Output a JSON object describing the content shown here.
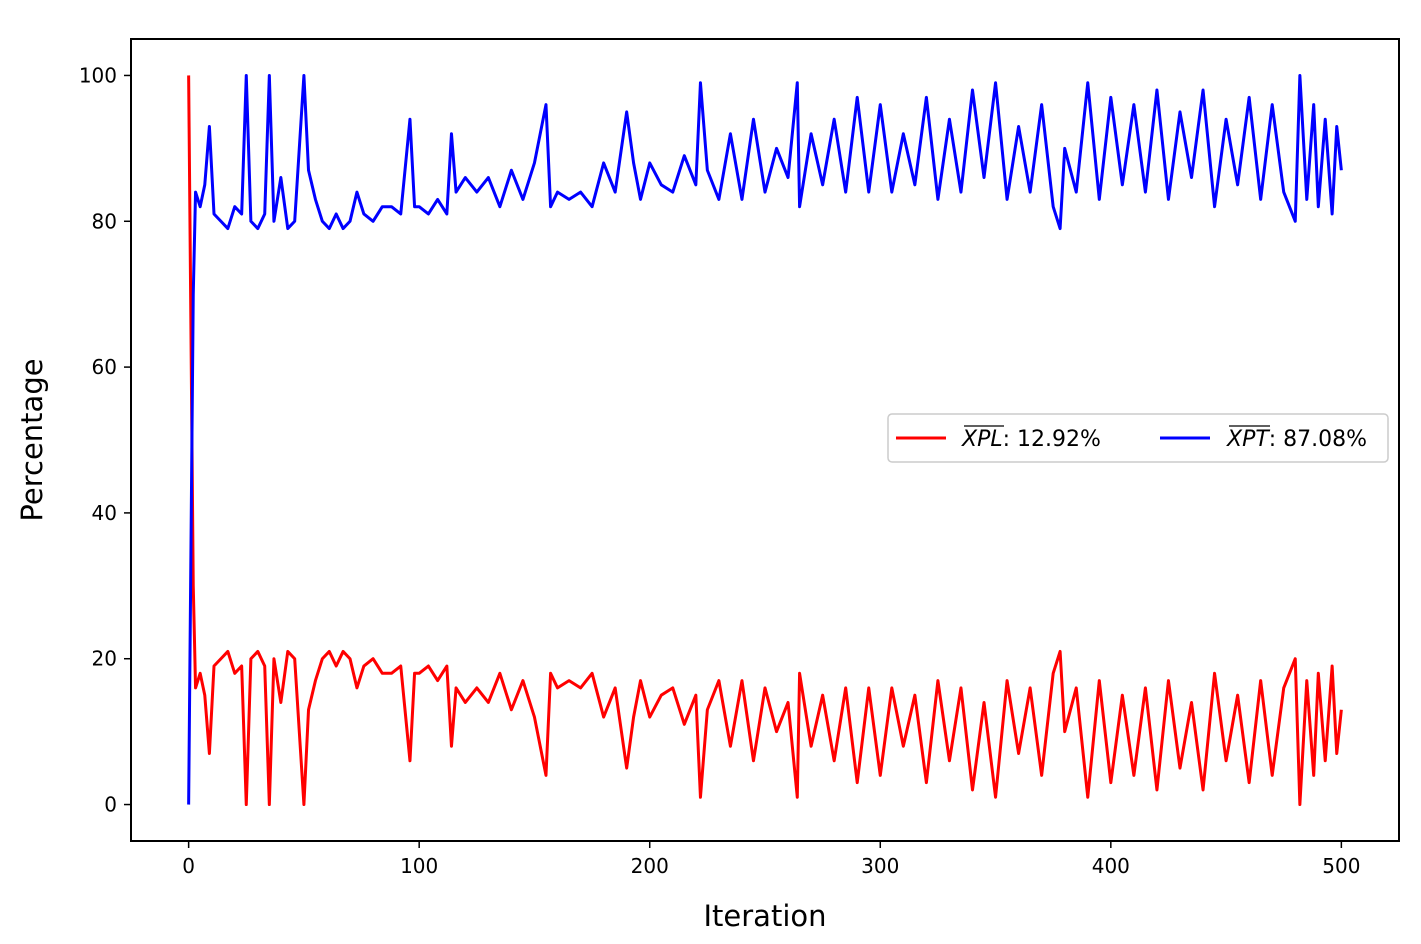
{
  "chart_data": {
    "type": "line",
    "title": "",
    "xlabel": "Iteration",
    "ylabel": "Percentage",
    "xlim": [
      -25,
      525
    ],
    "ylim": [
      -5,
      105
    ],
    "xticks": [
      0,
      100,
      200,
      300,
      400,
      500
    ],
    "yticks": [
      0,
      20,
      40,
      60,
      80,
      100
    ],
    "grid": false,
    "legend": {
      "placement": "center-right",
      "columns": 2
    },
    "series": [
      {
        "name": "XPL",
        "legend_label": "XPL: 12.92%",
        "legend_symbol": "XPL",
        "legend_value": ": 12.92%",
        "color": "#ff0000",
        "x": [
          0,
          2,
          3,
          5,
          7,
          9,
          11,
          14,
          17,
          20,
          23,
          25,
          27,
          30,
          33,
          35,
          37,
          40,
          43,
          46,
          50,
          52,
          55,
          58,
          61,
          64,
          67,
          70,
          73,
          76,
          80,
          84,
          88,
          92,
          96,
          98,
          100,
          104,
          108,
          112,
          114,
          116,
          120,
          125,
          130,
          135,
          140,
          145,
          150,
          155,
          157,
          160,
          165,
          170,
          175,
          180,
          185,
          190,
          193,
          196,
          200,
          205,
          210,
          215,
          220,
          222,
          225,
          230,
          235,
          240,
          245,
          250,
          255,
          260,
          264,
          265,
          270,
          275,
          280,
          285,
          290,
          295,
          300,
          305,
          310,
          315,
          320,
          325,
          330,
          335,
          340,
          345,
          350,
          355,
          360,
          365,
          370,
          375,
          378,
          380,
          385,
          390,
          395,
          400,
          405,
          410,
          415,
          420,
          425,
          430,
          435,
          440,
          445,
          450,
          455,
          460,
          465,
          470,
          475,
          480,
          482,
          485,
          488,
          490,
          493,
          496,
          498,
          500
        ],
        "values": [
          100,
          30,
          16,
          18,
          15,
          7,
          19,
          20,
          21,
          18,
          19,
          0,
          20,
          21,
          19,
          0,
          20,
          14,
          21,
          20,
          0,
          13,
          17,
          20,
          21,
          19,
          21,
          20,
          16,
          19,
          20,
          18,
          18,
          19,
          6,
          18,
          18,
          19,
          17,
          19,
          8,
          16,
          14,
          16,
          14,
          18,
          13,
          17,
          12,
          4,
          18,
          16,
          17,
          16,
          18,
          12,
          16,
          5,
          12,
          17,
          12,
          15,
          16,
          11,
          15,
          1,
          13,
          17,
          8,
          17,
          6,
          16,
          10,
          14,
          1,
          18,
          8,
          15,
          6,
          16,
          3,
          16,
          4,
          16,
          8,
          15,
          3,
          17,
          6,
          16,
          2,
          14,
          1,
          17,
          7,
          16,
          4,
          18,
          21,
          10,
          16,
          1,
          17,
          3,
          15,
          4,
          16,
          2,
          17,
          5,
          14,
          2,
          18,
          6,
          15,
          3,
          17,
          4,
          16,
          20,
          0,
          17,
          4,
          18,
          6,
          19,
          7,
          13
        ]
      },
      {
        "name": "XPT",
        "legend_label": "XPT: 87.08%",
        "legend_symbol": "XPT",
        "legend_value": ": 87.08%",
        "color": "#0000ff",
        "x": [
          0,
          2,
          3,
          5,
          7,
          9,
          11,
          14,
          17,
          20,
          23,
          25,
          27,
          30,
          33,
          35,
          37,
          40,
          43,
          46,
          50,
          52,
          55,
          58,
          61,
          64,
          67,
          70,
          73,
          76,
          80,
          84,
          88,
          92,
          96,
          98,
          100,
          104,
          108,
          112,
          114,
          116,
          120,
          125,
          130,
          135,
          140,
          145,
          150,
          155,
          157,
          160,
          165,
          170,
          175,
          180,
          185,
          190,
          193,
          196,
          200,
          205,
          210,
          215,
          220,
          222,
          225,
          230,
          235,
          240,
          245,
          250,
          255,
          260,
          264,
          265,
          270,
          275,
          280,
          285,
          290,
          295,
          300,
          305,
          310,
          315,
          320,
          325,
          330,
          335,
          340,
          345,
          350,
          355,
          360,
          365,
          370,
          375,
          378,
          380,
          385,
          390,
          395,
          400,
          405,
          410,
          415,
          420,
          425,
          430,
          435,
          440,
          445,
          450,
          455,
          460,
          465,
          470,
          475,
          480,
          482,
          485,
          488,
          490,
          493,
          496,
          498,
          500
        ],
        "values": [
          0,
          70,
          84,
          82,
          85,
          93,
          81,
          80,
          79,
          82,
          81,
          100,
          80,
          79,
          81,
          100,
          80,
          86,
          79,
          80,
          100,
          87,
          83,
          80,
          79,
          81,
          79,
          80,
          84,
          81,
          80,
          82,
          82,
          81,
          94,
          82,
          82,
          81,
          83,
          81,
          92,
          84,
          86,
          84,
          86,
          82,
          87,
          83,
          88,
          96,
          82,
          84,
          83,
          84,
          82,
          88,
          84,
          95,
          88,
          83,
          88,
          85,
          84,
          89,
          85,
          99,
          87,
          83,
          92,
          83,
          94,
          84,
          90,
          86,
          99,
          82,
          92,
          85,
          94,
          84,
          97,
          84,
          96,
          84,
          92,
          85,
          97,
          83,
          94,
          84,
          98,
          86,
          99,
          83,
          93,
          84,
          96,
          82,
          79,
          90,
          84,
          99,
          83,
          97,
          85,
          96,
          84,
          98,
          83,
          95,
          86,
          98,
          82,
          94,
          85,
          97,
          83,
          96,
          84,
          80,
          100,
          83,
          96,
          82,
          94,
          81,
          93,
          87
        ]
      }
    ]
  }
}
